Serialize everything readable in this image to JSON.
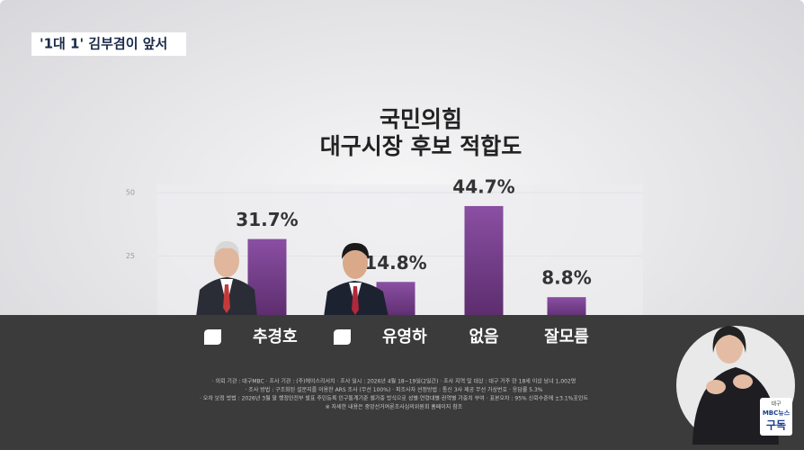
{
  "headline": "'1대 1' 김부겸이 앞서",
  "chart_data": {
    "type": "bar",
    "title_lines": [
      "국민의힘",
      "대구시장 후보 적합도"
    ],
    "categories": [
      "추경호",
      "유영하",
      "없음",
      "잘모름"
    ],
    "values": [
      31.7,
      14.8,
      44.7,
      8.8
    ],
    "value_labels": [
      "31.7%",
      "14.8%",
      "44.7%",
      "8.8%"
    ],
    "color": "#7d4595",
    "ylim": [
      0,
      50
    ],
    "yticks": [
      25,
      50
    ],
    "grid": true,
    "notes": [
      "· 의뢰 기관 : 대구MBC   · 조사 기관 : (주)에이스리서치   · 조사 일시 : 2026년 4월 18~19일(2일간)   · 조사 지역 및 대상 : 대구 거주 만 18세 이상 남녀 1,002명",
      "· 조사 방법 : 구조화된 설문지를 이용한 ARS 조사 (무선 100%)   · 피조사자 선정방법 : 통신 3사 제공 무선 가상번호   · 응답률 5.3%",
      "· 오차 보정 방법 : 2026년 3월 말 행정안전부 발표 주민등록 인구통계기준 셀가중 방식으로 성별·연령대별·권역별 가중치 부여   · 표본오차 : 95% 신뢰수준에 ±3.1%포인트",
      "※ 자세한 내용은 중앙선거여론조사심의위원회 홈페이지 참조"
    ]
  },
  "logo": {
    "region": "대구",
    "brand": "MBC뉴스",
    "action": "구독"
  }
}
